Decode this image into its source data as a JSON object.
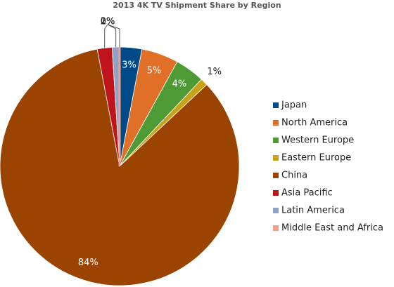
{
  "chart_data": {
    "type": "pie",
    "title": "2013 4K TV Shipment Share by Region",
    "categories": [
      "Japan",
      "North America",
      "Western Europe",
      "Eastern Europe",
      "China",
      "Asia Pacific",
      "Latin America",
      "Middle East and Africa"
    ],
    "values": [
      3,
      5,
      4,
      1,
      84,
      2,
      1,
      0
    ],
    "value_labels": [
      "3%",
      "5%",
      "4%",
      "1%",
      "84%",
      "2%",
      "1%",
      "0%"
    ],
    "colors": [
      "#004b87",
      "#e07028",
      "#4e9a35",
      "#c8a21a",
      "#9b4300",
      "#c0141c",
      "#8fa3c8",
      "#f0a090"
    ],
    "legend": "right"
  }
}
